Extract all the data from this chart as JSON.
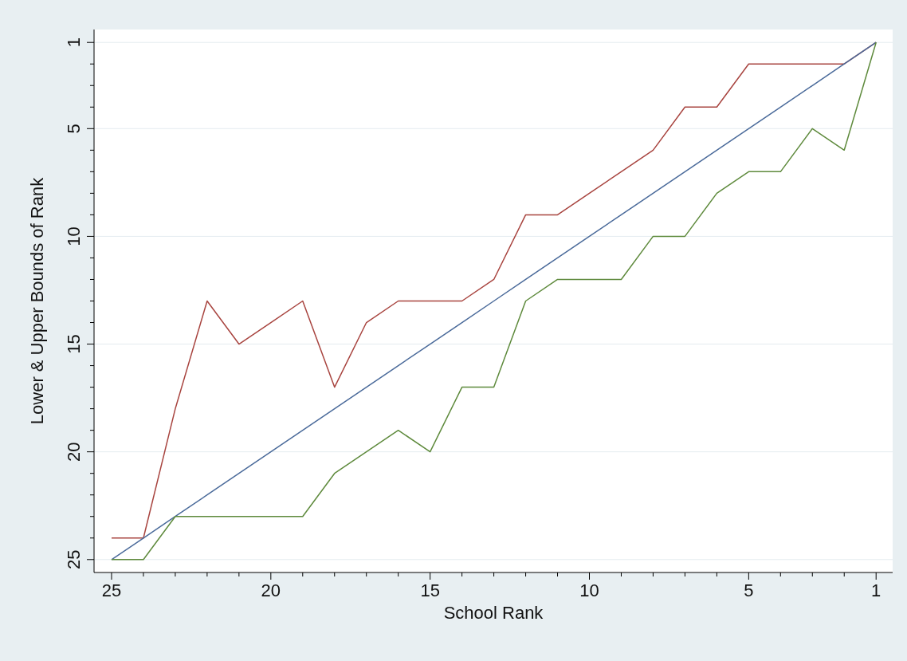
{
  "chart_data": {
    "type": "line",
    "xlabel": "School Rank",
    "ylabel": "Lower & Upper Bounds of Rank",
    "x": [
      25,
      24,
      23,
      22,
      21,
      20,
      19,
      18,
      17,
      16,
      15,
      14,
      13,
      12,
      11,
      10,
      9,
      8,
      7,
      6,
      5,
      4,
      3,
      2,
      1
    ],
    "series": [
      {
        "color": "#a8443f",
        "values": [
          24,
          24,
          18,
          13,
          15,
          14,
          13,
          17,
          14,
          13,
          13,
          13,
          12,
          9,
          9,
          8,
          7,
          6,
          4,
          4,
          2,
          2,
          2,
          2,
          1
        ]
      },
      {
        "color": "#4a6a9a",
        "values": [
          25,
          24,
          23,
          22,
          21,
          20,
          19,
          18,
          17,
          16,
          15,
          14,
          13,
          12,
          11,
          10,
          9,
          8,
          7,
          6,
          5,
          4,
          3,
          2,
          1
        ]
      },
      {
        "color": "#5e8a3c",
        "values": [
          25,
          25,
          23,
          23,
          23,
          23,
          23,
          21,
          20,
          19,
          20,
          17,
          17,
          13,
          12,
          12,
          12,
          10,
          10,
          8,
          7,
          7,
          5,
          6,
          1
        ]
      }
    ],
    "xlim": [
      25.55,
      0.48
    ],
    "ylim": [
      25.6,
      0.4
    ],
    "xticks": [
      25,
      {
        "value": 24,
        "label": null
      },
      {
        "value": 23,
        "label": null
      },
      {
        "value": 22,
        "label": null
      },
      {
        "value": 21,
        "label": null
      },
      20,
      {
        "value": 19,
        "label": null
      },
      {
        "value": 18,
        "label": null
      },
      {
        "value": 17,
        "label": null
      },
      {
        "value": 16,
        "label": null
      },
      15,
      {
        "value": 14,
        "label": null
      },
      {
        "value": 13,
        "label": null
      },
      {
        "value": 12,
        "label": null
      },
      {
        "value": 11,
        "label": null
      },
      10,
      {
        "value": 9,
        "label": null
      },
      {
        "value": 8,
        "label": null
      },
      {
        "value": 7,
        "label": null
      },
      {
        "value": 6,
        "label": null
      },
      5,
      {
        "value": 4,
        "label": null
      },
      {
        "value": 3,
        "label": null
      },
      {
        "value": 2,
        "label": null
      },
      1
    ],
    "yticks": [
      1,
      {
        "value": 2,
        "label": null
      },
      {
        "value": 3,
        "label": null
      },
      {
        "value": 4,
        "label": null
      },
      5,
      {
        "value": 6,
        "label": null
      },
      {
        "value": 7,
        "label": null
      },
      {
        "value": 8,
        "label": null
      },
      {
        "value": 9,
        "label": null
      },
      10,
      {
        "value": 11,
        "label": null
      },
      {
        "value": 12,
        "label": null
      },
      {
        "value": 13,
        "label": null
      },
      {
        "value": 14,
        "label": null
      },
      15,
      {
        "value": 16,
        "label": null
      },
      {
        "value": 17,
        "label": null
      },
      {
        "value": 18,
        "label": null
      },
      {
        "value": 19,
        "label": null
      },
      20,
      {
        "value": 21,
        "label": null
      },
      {
        "value": 22,
        "label": null
      },
      {
        "value": 23,
        "label": null
      },
      {
        "value": 24,
        "label": null
      },
      25
    ],
    "grid": "y",
    "marker": "none",
    "line_style": "solid"
  }
}
